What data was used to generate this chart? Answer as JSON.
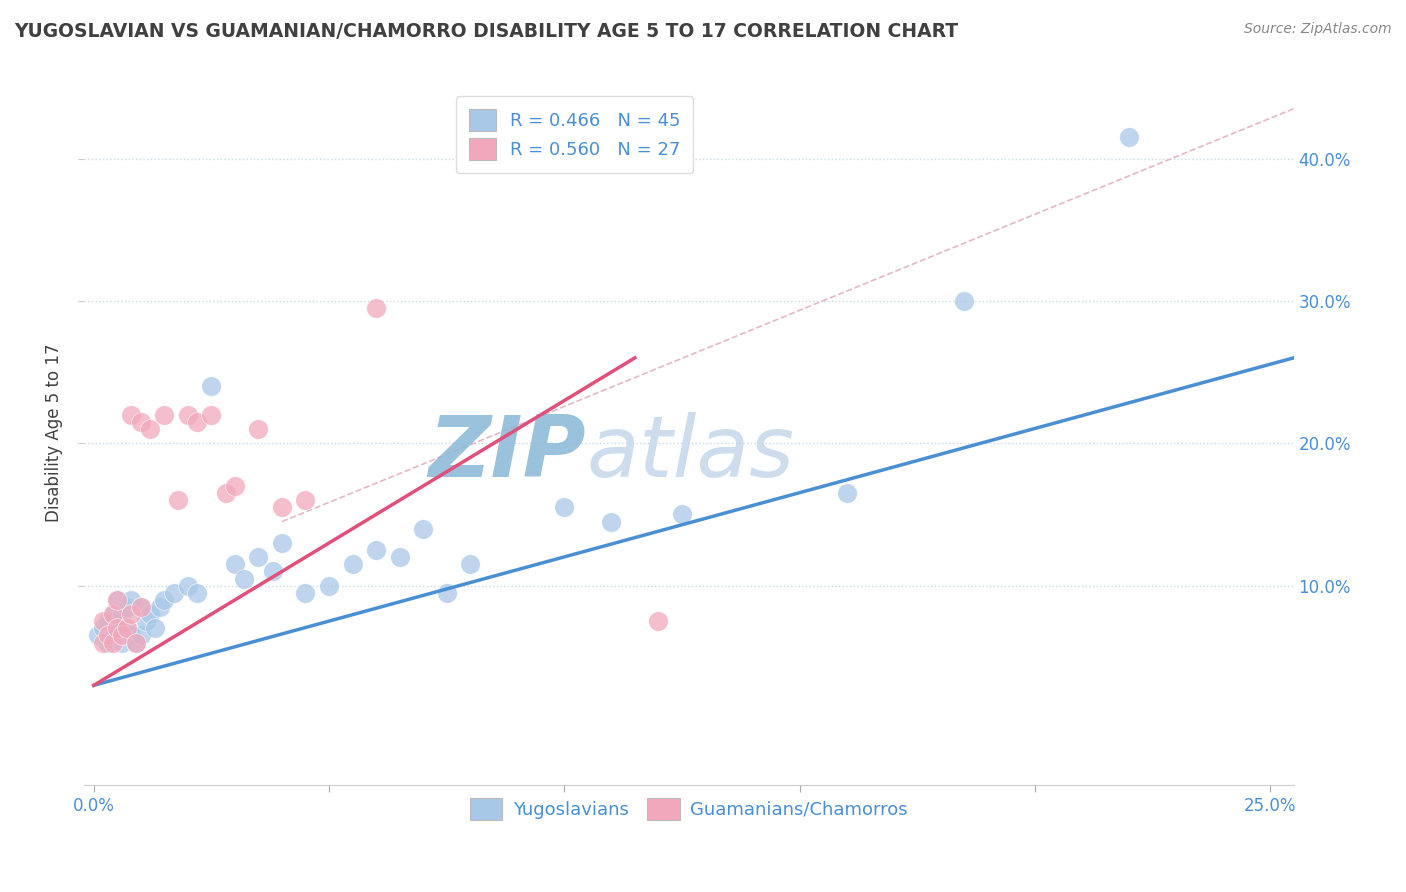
{
  "title": "YUGOSLAVIAN VS GUAMANIAN/CHAMORRO DISABILITY AGE 5 TO 17 CORRELATION CHART",
  "source": "Source: ZipAtlas.com",
  "ylabel": "Disability Age 5 to 17",
  "xticklabels_ends": [
    "0.0%",
    "25.0%"
  ],
  "yticklabels": [
    "10.0%",
    "20.0%",
    "30.0%",
    "40.0%"
  ],
  "xlim": [
    -0.002,
    0.255
  ],
  "ylim": [
    -0.04,
    0.455
  ],
  "legend1_label": "R = 0.466   N = 45",
  "legend2_label": "R = 0.560   N = 27",
  "series1_color": "#a8c8e8",
  "series2_color": "#f2a8bc",
  "trendline1_color": "#4a8fd4",
  "trendline2_color": "#e0507a",
  "refline_color": "#e0b0c0",
  "watermark": "ZIPatlas",
  "watermark_color": "#c5d8ec",
  "title_color": "#404040",
  "ylabel_color": "#404040",
  "axis_tick_color": "#4a8fd4",
  "background_color": "#ffffff",
  "grid_color": "#c8d8e4",
  "series1_x": [
    0.001,
    0.002,
    0.003,
    0.003,
    0.004,
    0.004,
    0.005,
    0.005,
    0.006,
    0.006,
    0.007,
    0.007,
    0.008,
    0.008,
    0.009,
    0.01,
    0.01,
    0.011,
    0.012,
    0.013,
    0.014,
    0.015,
    0.017,
    0.02,
    0.022,
    0.025,
    0.03,
    0.032,
    0.035,
    0.038,
    0.04,
    0.045,
    0.05,
    0.055,
    0.06,
    0.065,
    0.07,
    0.075,
    0.08,
    0.1,
    0.11,
    0.125,
    0.16,
    0.185,
    0.22
  ],
  "series1_y": [
    0.065,
    0.07,
    0.06,
    0.075,
    0.065,
    0.08,
    0.07,
    0.09,
    0.06,
    0.08,
    0.07,
    0.085,
    0.065,
    0.09,
    0.06,
    0.065,
    0.085,
    0.075,
    0.08,
    0.07,
    0.085,
    0.09,
    0.095,
    0.1,
    0.095,
    0.24,
    0.115,
    0.105,
    0.12,
    0.11,
    0.13,
    0.095,
    0.1,
    0.115,
    0.125,
    0.12,
    0.14,
    0.095,
    0.115,
    0.155,
    0.145,
    0.15,
    0.165,
    0.3,
    0.415
  ],
  "series2_x": [
    0.002,
    0.002,
    0.003,
    0.004,
    0.004,
    0.005,
    0.005,
    0.006,
    0.007,
    0.008,
    0.008,
    0.009,
    0.01,
    0.01,
    0.012,
    0.015,
    0.018,
    0.02,
    0.022,
    0.025,
    0.028,
    0.03,
    0.035,
    0.04,
    0.045,
    0.06,
    0.12
  ],
  "series2_y": [
    0.06,
    0.075,
    0.065,
    0.06,
    0.08,
    0.07,
    0.09,
    0.065,
    0.07,
    0.08,
    0.22,
    0.06,
    0.085,
    0.215,
    0.21,
    0.22,
    0.16,
    0.22,
    0.215,
    0.22,
    0.165,
    0.17,
    0.21,
    0.155,
    0.16,
    0.295,
    0.075
  ],
  "trendline1_x": [
    0.0,
    0.255
  ],
  "trendline1_y": [
    0.03,
    0.26
  ],
  "trendline2_x": [
    0.0,
    0.115
  ],
  "trendline2_y": [
    0.03,
    0.26
  ],
  "refline_x": [
    0.04,
    0.255
  ],
  "refline_y": [
    0.145,
    0.435
  ]
}
